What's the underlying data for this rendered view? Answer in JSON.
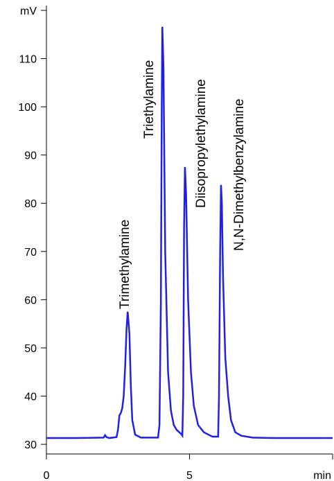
{
  "chart_data": {
    "type": "line",
    "x": [
      0,
      1,
      2,
      2.05,
      2.1,
      2.2,
      2.45,
      2.5,
      2.55,
      2.6,
      2.65,
      2.7,
      2.75,
      2.8,
      2.84,
      2.9,
      2.95,
      3.0,
      3.1,
      3.3,
      3.9,
      3.95,
      4.0,
      4.03,
      4.05,
      4.09,
      4.15,
      4.25,
      4.35,
      4.45,
      4.55,
      4.7,
      4.75,
      4.78,
      4.81,
      4.84,
      4.88,
      4.95,
      5.05,
      5.15,
      5.3,
      5.5,
      5.8,
      6.0,
      6.03,
      6.07,
      6.1,
      6.13,
      6.17,
      6.25,
      6.35,
      6.45,
      6.6,
      6.8,
      7.2,
      8,
      9,
      10
    ],
    "series": [
      {
        "color": "#1f1fe6",
        "values": [
          31.3,
          31.3,
          31.4,
          31.9,
          31.5,
          31.3,
          31.5,
          33,
          36,
          36.5,
          37.5,
          40,
          46,
          54,
          57.5,
          53,
          42,
          35,
          32,
          31.4,
          31.4,
          34,
          60,
          100,
          116.6,
          108,
          70,
          45,
          37,
          34,
          33,
          32.2,
          31.8,
          40,
          75,
          87.5,
          82,
          60,
          45,
          38,
          34,
          32.5,
          31.6,
          31.6,
          40,
          70,
          83.8,
          80,
          65,
          48,
          40,
          35,
          32.5,
          31.8,
          31.4,
          31.3,
          31.3,
          31.3
        ]
      }
    ],
    "xlim": [
      0,
      10
    ],
    "ylim": [
      28,
      121
    ],
    "xticks": [
      0,
      5,
      {
        "value": 10,
        "label": "min"
      }
    ],
    "yticks": [
      30,
      40,
      50,
      60,
      70,
      80,
      90,
      100,
      110,
      {
        "value": 120,
        "label": "mV"
      }
    ],
    "annotations": [
      "Trimethylamine",
      "Triethylamine",
      "Diisopropylethylamine",
      "N,N-Dimethylbenzylamine"
    ]
  }
}
